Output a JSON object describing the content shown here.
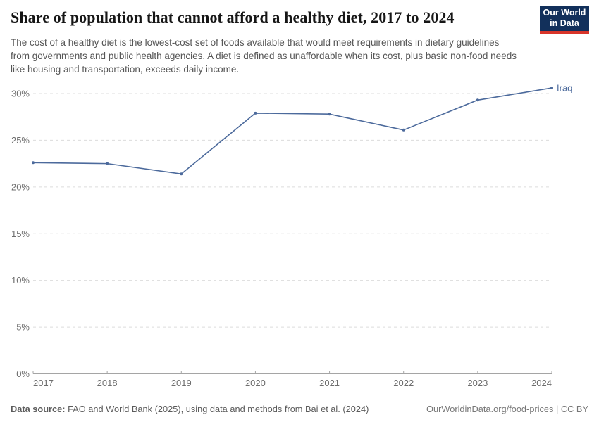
{
  "header": {
    "title": "Share of population that cannot afford a healthy diet, 2017 to 2024",
    "subtitle": "The cost of a healthy diet is the lowest-cost set of foods available that would meet requirements in dietary guidelines from governments and public health agencies. A diet is defined as unaffordable when its cost, plus basic non-food needs like housing and transportation, exceeds daily income.",
    "logo": {
      "line1": "Our World",
      "line2": "in Data",
      "background_color": "#12305b",
      "accent_color": "#d8352a"
    }
  },
  "chart_data": {
    "type": "line",
    "categories": [
      "2017",
      "2018",
      "2019",
      "2020",
      "2021",
      "2022",
      "2023",
      "2024"
    ],
    "series": [
      {
        "name": "Iraq",
        "color": "#4c6a9c",
        "values": [
          22.6,
          22.5,
          21.4,
          27.9,
          27.8,
          26.1,
          29.3,
          30.6
        ]
      }
    ],
    "ylabel": "",
    "xlabel": "",
    "ylim": [
      0,
      30
    ],
    "yticks": [
      0,
      5,
      10,
      15,
      20,
      25,
      30
    ],
    "ytick_suffix": "%",
    "grid": "horizontal-dashed",
    "legend_position": "line-end-label"
  },
  "footer": {
    "source_label": "Data source:",
    "source_text": "FAO and World Bank (2025), using data and methods from Bai et al. (2024)",
    "link_text": "OurWorldinData.org/food-prices | CC BY"
  }
}
